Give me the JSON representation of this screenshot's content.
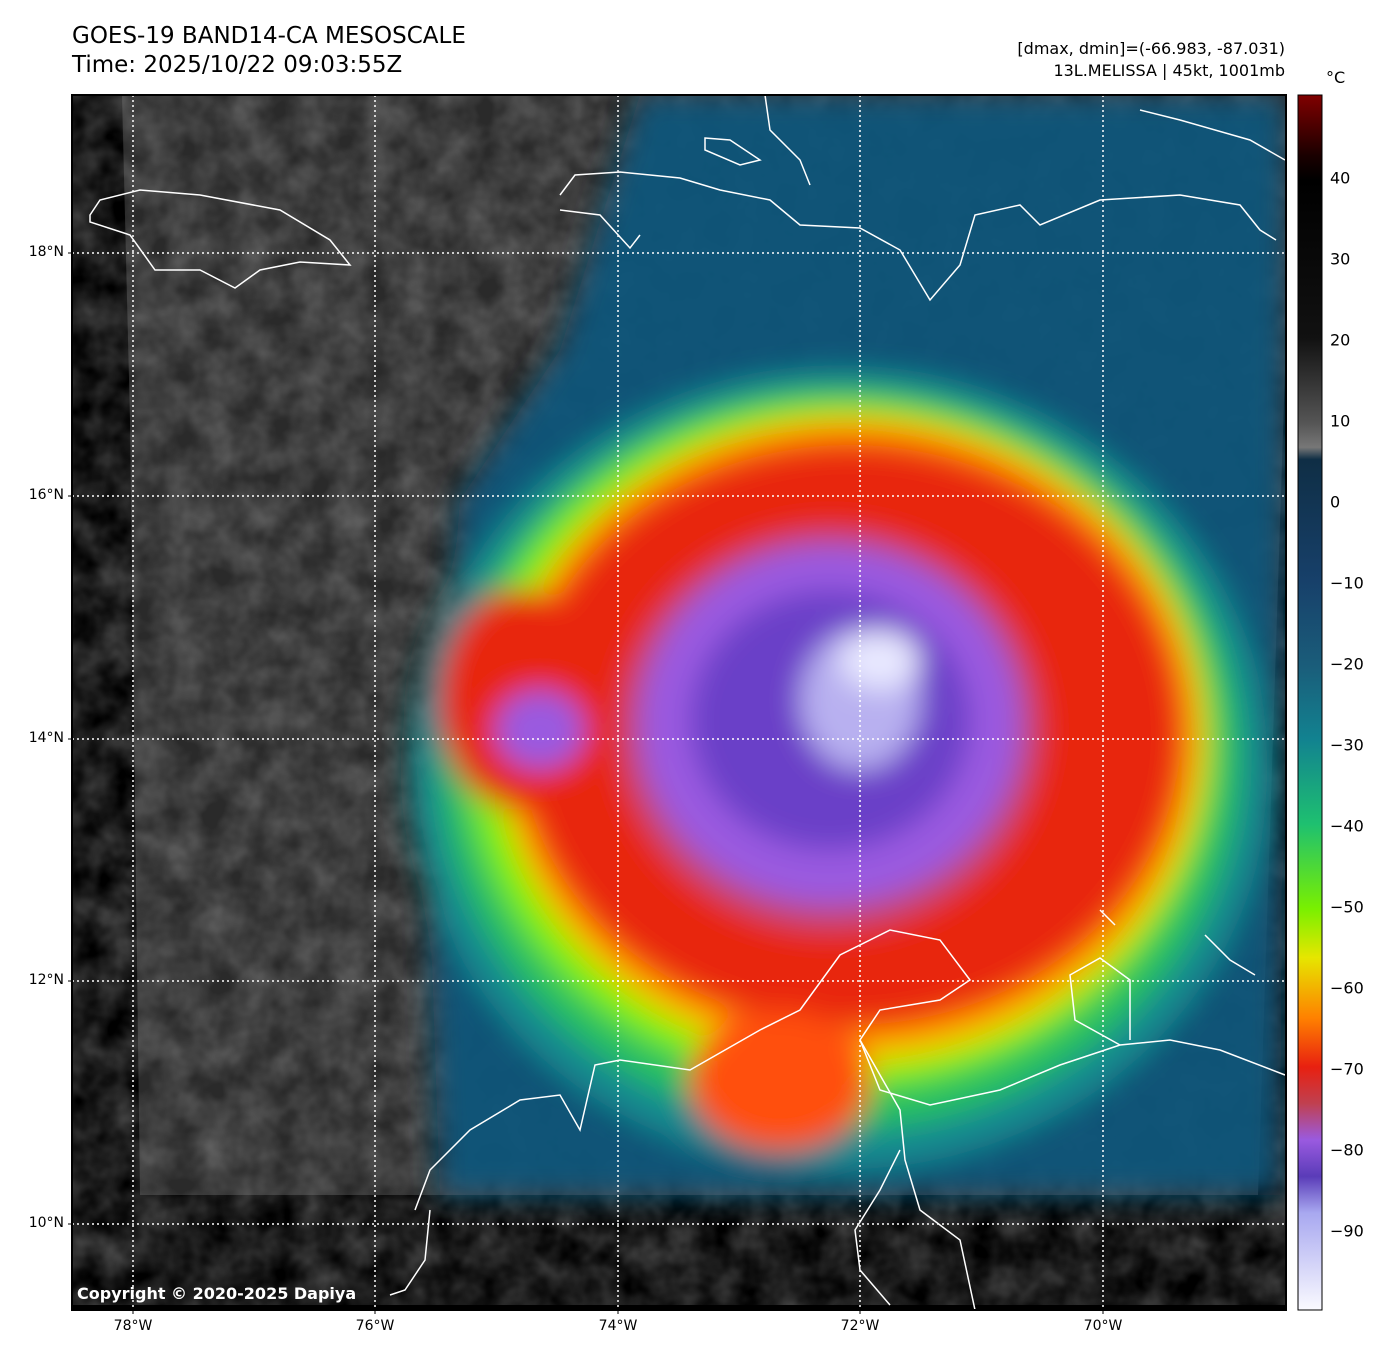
{
  "header": {
    "title": "GOES-19 BAND14-CA MESOSCALE",
    "time": "Time: 2025/10/22 09:03:55Z",
    "range": "[dmax, dmin]=(-66.983, -87.031)",
    "storm": "13L.MELISSA | 45kt, 1001mb"
  },
  "map": {
    "lat_labels": [
      "18°N",
      "16°N",
      "14°N",
      "12°N",
      "10°N"
    ],
    "lon_labels": [
      "78°W",
      "76°W",
      "74°W",
      "72°W",
      "70°W"
    ],
    "copyright": "Copyright © 2020-2025 Dapiya"
  },
  "colorbar": {
    "unit": "°C",
    "ticks": [
      "40",
      "30",
      "20",
      "10",
      "0",
      "−10",
      "−20",
      "−30",
      "−40",
      "−50",
      "−60",
      "−70",
      "−80",
      "−90"
    ],
    "range": [
      -100,
      50
    ]
  }
}
